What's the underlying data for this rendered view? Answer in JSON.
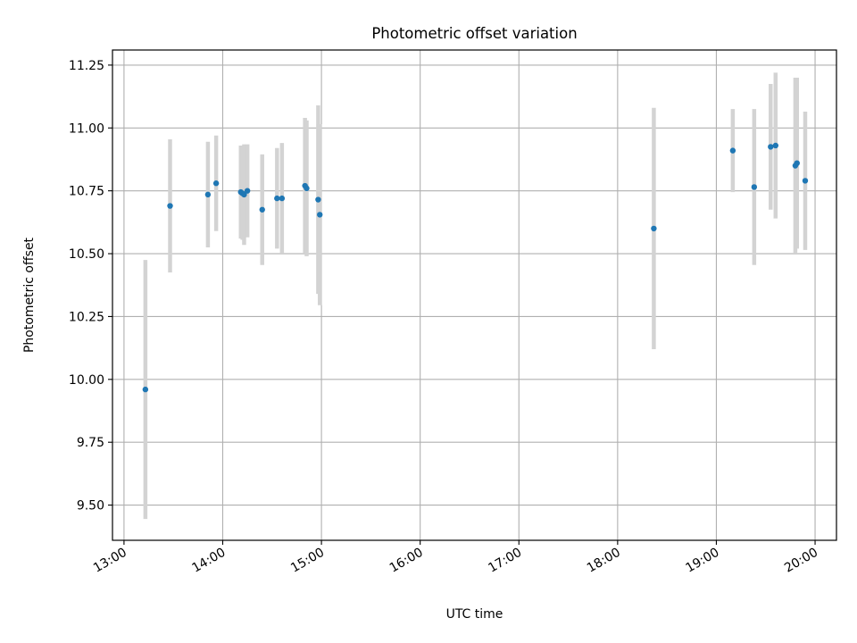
{
  "chart_data": {
    "type": "scatter",
    "title": "Photometric offset variation",
    "xlabel": "UTC time",
    "ylabel": "Photometric offset",
    "xlim": [
      "12:53",
      "20:13"
    ],
    "ylim": [
      9.36,
      11.31
    ],
    "x_ticks": [
      "13:00",
      "14:00",
      "15:00",
      "16:00",
      "17:00",
      "18:00",
      "19:00",
      "20:00"
    ],
    "y_ticks": [
      "9.50",
      "9.75",
      "10.00",
      "10.25",
      "10.50",
      "10.75",
      "11.00",
      "11.25"
    ],
    "grid": true,
    "marker_color": "#1f77b4",
    "errorbar_color": "#d3d3d3",
    "series": [
      {
        "points": [
          {
            "x": "13:13",
            "y": 9.96,
            "err": 0.515
          },
          {
            "x": "13:28",
            "y": 10.69,
            "err": 0.265
          },
          {
            "x": "13:51",
            "y": 10.735,
            "err": 0.21
          },
          {
            "x": "13:56",
            "y": 10.78,
            "err": 0.19
          },
          {
            "x": "14:11",
            "y": 10.745,
            "err": 0.185
          },
          {
            "x": "14:12",
            "y": 10.74,
            "err": 0.185
          },
          {
            "x": "14:13",
            "y": 10.735,
            "err": 0.2
          },
          {
            "x": "14:15",
            "y": 10.75,
            "err": 0.185
          },
          {
            "x": "14:24",
            "y": 10.675,
            "err": 0.22
          },
          {
            "x": "14:33",
            "y": 10.72,
            "err": 0.2
          },
          {
            "x": "14:36",
            "y": 10.72,
            "err": 0.22
          },
          {
            "x": "14:50",
            "y": 10.77,
            "err": 0.27
          },
          {
            "x": "14:51",
            "y": 10.76,
            "err": 0.27
          },
          {
            "x": "14:58",
            "y": 10.715,
            "err": 0.375
          },
          {
            "x": "14:59",
            "y": 10.655,
            "err": 0.36
          },
          {
            "x": "18:22",
            "y": 10.6,
            "err": 0.48
          },
          {
            "x": "19:10",
            "y": 10.91,
            "err": 0.165
          },
          {
            "x": "19:23",
            "y": 10.765,
            "err": 0.31
          },
          {
            "x": "19:33",
            "y": 10.925,
            "err": 0.25
          },
          {
            "x": "19:36",
            "y": 10.93,
            "err": 0.29
          },
          {
            "x": "19:48",
            "y": 10.85,
            "err": 0.35
          },
          {
            "x": "19:49",
            "y": 10.86,
            "err": 0.34
          },
          {
            "x": "19:54",
            "y": 10.79,
            "err": 0.275
          }
        ]
      }
    ]
  }
}
